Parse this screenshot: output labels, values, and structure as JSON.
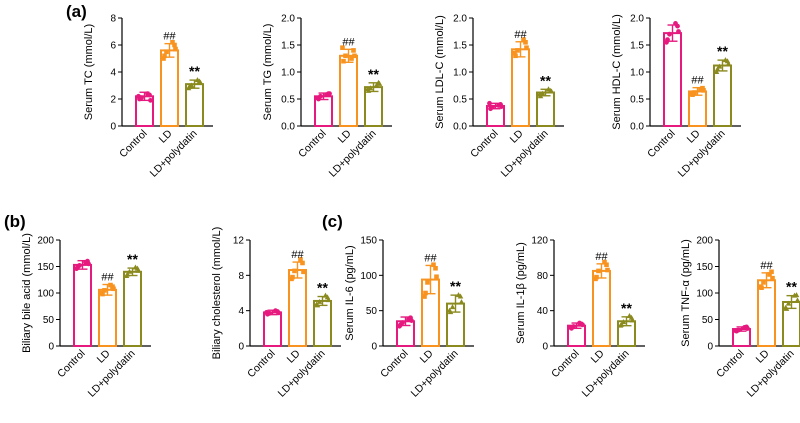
{
  "panel_labels": [
    "(a)",
    "(b)",
    "(c)"
  ],
  "groups": [
    "Control",
    "LD",
    "LD+polydatin"
  ],
  "colors": [
    "#e6197f",
    "#f7931e",
    "#8a8a1f"
  ],
  "chart_data": [
    {
      "type": "bar",
      "panel": "a",
      "ylabel": "Serum TC (mmol/L)",
      "ylim": [
        0,
        8
      ],
      "yticks": [
        0,
        2,
        4,
        6,
        8
      ],
      "categories": [
        "Control",
        "LD",
        "LD+polydatin"
      ],
      "values": [
        2.2,
        5.6,
        3.1
      ],
      "errors": [
        0.3,
        0.5,
        0.3
      ],
      "points": [
        [
          2.0,
          2.3,
          2.1,
          2.4,
          2.2,
          1.9
        ],
        [
          5.2,
          6.0,
          5.5,
          6.2,
          5.0,
          5.7
        ],
        [
          2.9,
          3.3,
          3.0,
          3.4,
          2.8,
          3.2
        ]
      ],
      "annotations": [
        "",
        "##",
        "**"
      ]
    },
    {
      "type": "bar",
      "panel": "a",
      "ylabel": "Serum TG (mmol/L)",
      "ylim": [
        0,
        2
      ],
      "yticks": [
        0.0,
        0.5,
        1.0,
        1.5,
        2.0
      ],
      "categories": [
        "Control",
        "LD",
        "LD+polydatin"
      ],
      "values": [
        0.55,
        1.3,
        0.72
      ],
      "errors": [
        0.06,
        0.12,
        0.08
      ],
      "points": [
        [
          0.5,
          0.6,
          0.55,
          0.58,
          0.52,
          0.6
        ],
        [
          1.2,
          1.4,
          1.3,
          1.25,
          1.45,
          1.3
        ],
        [
          0.65,
          0.8,
          0.7,
          0.75,
          0.68,
          0.78
        ]
      ],
      "annotations": [
        "",
        "##",
        "**"
      ]
    },
    {
      "type": "bar",
      "panel": "a",
      "ylabel": "Serum LDL-C (mmol/L)",
      "ylim": [
        0,
        2
      ],
      "yticks": [
        0.0,
        0.5,
        1.0,
        1.5,
        2.0
      ],
      "categories": [
        "Control",
        "LD",
        "LD+polydatin"
      ],
      "values": [
        0.37,
        1.42,
        0.62
      ],
      "errors": [
        0.05,
        0.14,
        0.06
      ],
      "points": [
        [
          0.32,
          0.4,
          0.35,
          0.38,
          0.42,
          0.36
        ],
        [
          1.3,
          1.55,
          1.4,
          1.6,
          1.35,
          1.45
        ],
        [
          0.55,
          0.65,
          0.6,
          0.68,
          0.58,
          0.64
        ]
      ],
      "annotations": [
        "",
        "##",
        "**"
      ]
    },
    {
      "type": "bar",
      "panel": "a",
      "ylabel": "Serum HDL-C (mmol/L)",
      "ylim": [
        0,
        2
      ],
      "yticks": [
        0.0,
        0.5,
        1.0,
        1.5,
        2.0
      ],
      "categories": [
        "Control",
        "LD",
        "LD+polydatin"
      ],
      "values": [
        1.72,
        0.64,
        1.12
      ],
      "errors": [
        0.15,
        0.07,
        0.1
      ],
      "points": [
        [
          1.6,
          1.85,
          1.7,
          1.9,
          1.55,
          1.75
        ],
        [
          0.58,
          0.7,
          0.62,
          0.68,
          0.6,
          0.66
        ],
        [
          1.05,
          1.2,
          1.1,
          1.22,
          1.0,
          1.15
        ]
      ],
      "annotations": [
        "",
        "##",
        "**"
      ]
    },
    {
      "type": "bar",
      "panel": "b",
      "ylabel": "Biliary bile acid (mmol/L)",
      "ylim": [
        0,
        200
      ],
      "yticks": [
        0,
        50,
        100,
        150,
        200
      ],
      "categories": [
        "Control",
        "LD",
        "LD+polydatin"
      ],
      "values": [
        153,
        106,
        140
      ],
      "errors": [
        8,
        10,
        7
      ],
      "points": [
        [
          148,
          160,
          152,
          158,
          146,
          155
        ],
        [
          98,
          112,
          105,
          115,
          100,
          108
        ],
        [
          135,
          146,
          140,
          148,
          132,
          142
        ]
      ],
      "annotations": [
        "",
        "##",
        "**"
      ]
    },
    {
      "type": "bar",
      "panel": "b",
      "ylabel": "Biliary cholesterol (mmol/L)",
      "ylim": [
        0,
        12
      ],
      "yticks": [
        0,
        4,
        8,
        12
      ],
      "categories": [
        "Control",
        "LD",
        "LD+polydatin"
      ],
      "values": [
        3.8,
        8.6,
        5.1
      ],
      "errors": [
        0.25,
        0.9,
        0.5
      ],
      "points": [
        [
          3.6,
          3.9,
          3.7,
          4.0,
          3.8,
          3.75
        ],
        [
          7.8,
          9.4,
          8.5,
          9.8,
          7.6,
          8.4
        ],
        [
          4.6,
          5.5,
          5.0,
          5.7,
          4.7,
          5.2
        ]
      ],
      "annotations": [
        "",
        "##",
        "**"
      ]
    },
    {
      "type": "bar",
      "panel": "c",
      "ylabel": "Serum IL-6 (pg/mL)",
      "ylim": [
        0,
        150
      ],
      "yticks": [
        0,
        50,
        100,
        150
      ],
      "categories": [
        "Control",
        "LD",
        "LD+polydatin"
      ],
      "values": [
        35,
        94,
        60
      ],
      "errors": [
        6,
        20,
        12
      ],
      "points": [
        [
          30,
          40,
          33,
          38,
          28,
          36
        ],
        [
          75,
          110,
          90,
          115,
          70,
          98
        ],
        [
          48,
          70,
          55,
          72,
          50,
          62
        ]
      ],
      "annotations": [
        "",
        "##",
        "**"
      ]
    },
    {
      "type": "bar",
      "panel": "c",
      "ylabel": "Serum IL-1β (pg/mL)",
      "ylim": [
        0,
        120
      ],
      "yticks": [
        0,
        40,
        80,
        120
      ],
      "categories": [
        "Control",
        "LD",
        "LD+polydatin"
      ],
      "values": [
        23,
        85,
        28
      ],
      "errors": [
        3,
        8,
        5
      ],
      "points": [
        [
          20,
          25,
          22,
          26,
          21,
          24
        ],
        [
          78,
          92,
          85,
          95,
          76,
          86
        ],
        [
          24,
          32,
          27,
          34,
          23,
          29
        ]
      ],
      "annotations": [
        "",
        "##",
        "**"
      ]
    },
    {
      "type": "bar",
      "panel": "c",
      "ylabel": "Serum TNF-α (pg/mL)",
      "ylim": [
        0,
        200
      ],
      "yticks": [
        0,
        50,
        100,
        150,
        200
      ],
      "categories": [
        "Control",
        "LD",
        "LD+polydatin"
      ],
      "values": [
        32,
        124,
        83
      ],
      "errors": [
        4,
        14,
        12
      ],
      "points": [
        [
          28,
          36,
          30,
          35,
          29,
          33
        ],
        [
          110,
          140,
          120,
          135,
          112,
          128
        ],
        [
          70,
          96,
          80,
          95,
          72,
          86
        ]
      ],
      "annotations": [
        "",
        "##",
        "**"
      ]
    }
  ]
}
